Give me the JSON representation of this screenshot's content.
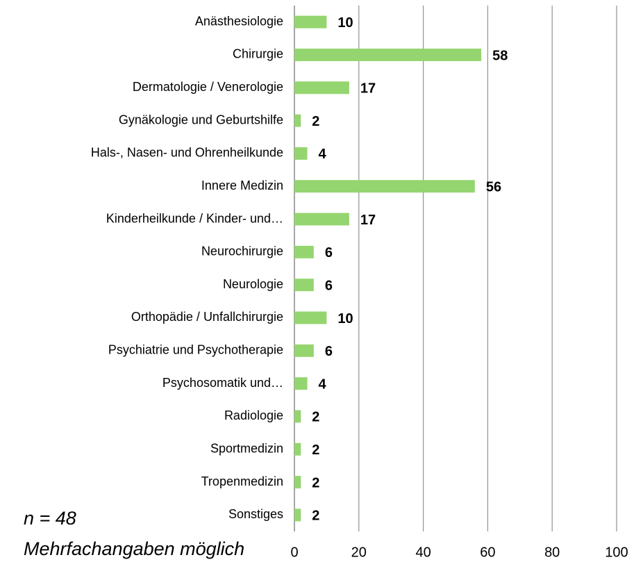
{
  "chart_data": {
    "type": "bar",
    "orientation": "horizontal",
    "categories": [
      "Anästhesiologie",
      "Chirurgie",
      "Dermatologie / Venerologie",
      "Gynäkologie und Geburtshilfe",
      "Hals-, Nasen- und Ohrenheilkunde",
      "Innere Medizin",
      "Kinderheilkunde / Kinder- und…",
      "Neurochirurgie",
      "Neurologie",
      "Orthopädie / Unfallchirurgie",
      "Psychiatrie und Psychotherapie",
      "Psychosomatik und…",
      "Radiologie",
      "Sportmedizin",
      "Tropenmedizin",
      "Sonstiges"
    ],
    "values": [
      10,
      58,
      17,
      2,
      4,
      56,
      17,
      6,
      6,
      10,
      6,
      4,
      2,
      2,
      2,
      2
    ],
    "color": "#95d56f",
    "xlim": [
      0,
      100
    ],
    "xticks": [
      0,
      20,
      40,
      60,
      80,
      100
    ],
    "grid": true,
    "annotations": [
      "n = 48",
      "Mehrfachangaben möglich"
    ]
  }
}
